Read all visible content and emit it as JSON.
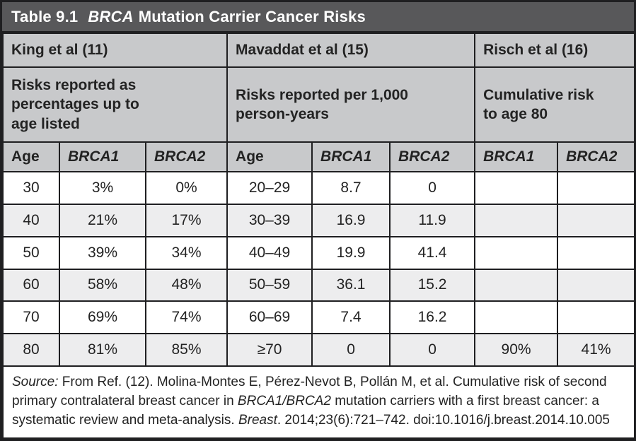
{
  "colors": {
    "title_bar_bg": "#58585a",
    "header_bg": "#c8c9cb",
    "row_alt_bg": "#ededee",
    "border": "#1f1f21",
    "title_text": "#ffffff",
    "body_text": "#232323"
  },
  "title": {
    "label": "Table 9.1",
    "gene": "BRCA",
    "rest": "Mutation Carrier Cancer Risks"
  },
  "groups": [
    {
      "name": "King et al (11)",
      "description": "Risks reported as\npercentages up to\nage listed"
    },
    {
      "name": "Mavaddat et al (15)",
      "description": "Risks reported per 1,000\nperson-years"
    },
    {
      "name": "Risch et al (16)",
      "description": "Cumulative risk\nto age 80"
    }
  ],
  "column_headers": [
    "Age",
    "BRCA1",
    "BRCA2",
    "Age",
    "BRCA1",
    "BRCA2",
    "BRCA1",
    "BRCA2"
  ],
  "rows": [
    [
      "30",
      "3%",
      "0%",
      "20–29",
      "8.7",
      "0",
      "",
      ""
    ],
    [
      "40",
      "21%",
      "17%",
      "30–39",
      "16.9",
      "11.9",
      "",
      ""
    ],
    [
      "50",
      "39%",
      "34%",
      "40–49",
      "19.9",
      "41.4",
      "",
      ""
    ],
    [
      "60",
      "58%",
      "48%",
      "50–59",
      "36.1",
      "15.2",
      "",
      ""
    ],
    [
      "70",
      "69%",
      "74%",
      "60–69",
      "7.4",
      "16.2",
      "",
      ""
    ],
    [
      "80",
      "81%",
      "85%",
      "≥70",
      "0",
      "0",
      "90%",
      "41%"
    ]
  ],
  "source": {
    "segments": [
      {
        "text": "Source:",
        "italic": true
      },
      {
        "text": " From Ref. (12). Molina-Montes E, Pérez-Nevot B, Pollán M, et al. Cumulative risk of second primary contralateral breast cancer in ",
        "italic": false
      },
      {
        "text": "BRCA1/BRCA2",
        "italic": true
      },
      {
        "text": " mutation carriers with a first breast cancer: a systematic review and meta-analysis. ",
        "italic": false
      },
      {
        "text": "Breast",
        "italic": true
      },
      {
        "text": ". 2014;23(6):721–742. doi:10.1016/j.breast.2014.10.005",
        "italic": false
      }
    ]
  }
}
